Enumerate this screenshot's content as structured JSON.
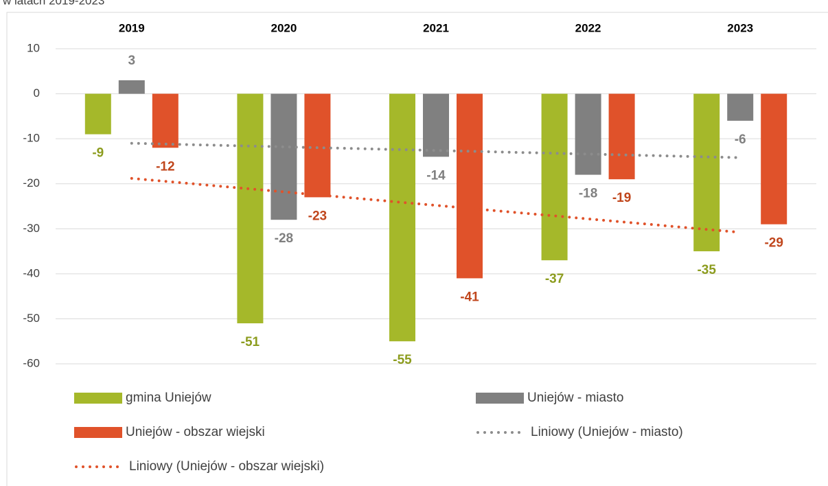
{
  "chart_data": {
    "type": "bar",
    "subtitle": "w latach 2019-2023",
    "categories": [
      "2019",
      "2020",
      "2021",
      "2022",
      "2023"
    ],
    "series": [
      {
        "name": "gmina Uniejów",
        "color": "#a5b82a",
        "label_color": "#8c9c1e",
        "values": [
          -9,
          -51,
          -55,
          -37,
          -35
        ]
      },
      {
        "name": "Uniejów - miasto",
        "color": "#808080",
        "label_color": "#7f7f7f",
        "values": [
          3,
          -28,
          -14,
          -18,
          -6
        ]
      },
      {
        "name": "Uniejów - obszar wiejski",
        "color": "#e0522a",
        "label_color": "#c0461c",
        "values": [
          -12,
          -23,
          -41,
          -19,
          -29
        ]
      }
    ],
    "trendlines": [
      {
        "name": "Liniowy (Uniejów - miasto)",
        "series": 1,
        "color": "#8c8c8c"
      },
      {
        "name": "Liniowy (Uniejów - obszar wiejski)",
        "series": 2,
        "color": "#e0522a"
      }
    ],
    "ylim": [
      -60,
      10
    ],
    "yticks": [
      10,
      0,
      -10,
      -20,
      -30,
      -40,
      -50,
      -60
    ],
    "grid": true
  }
}
